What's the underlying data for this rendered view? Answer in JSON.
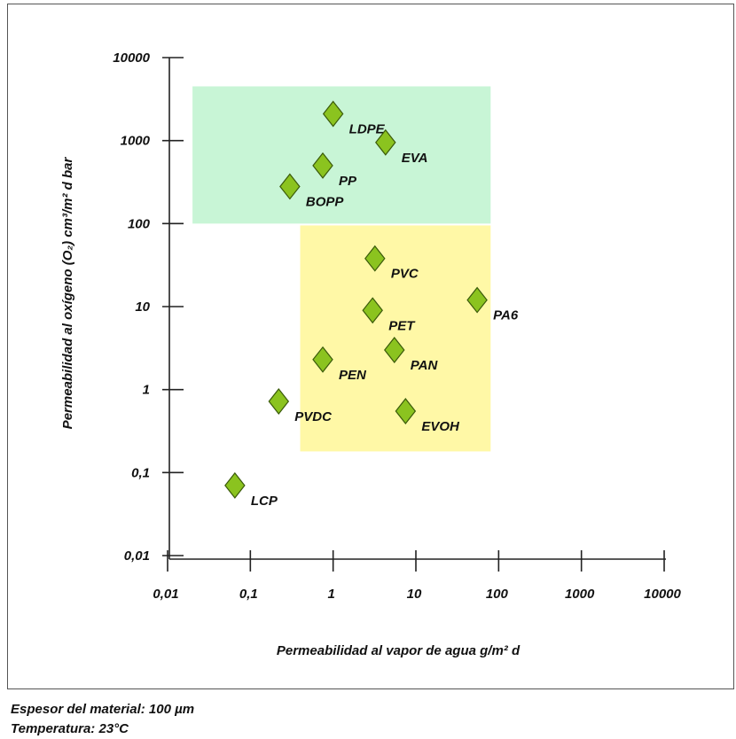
{
  "chart_data": {
    "type": "scatter",
    "x_scale": "log",
    "y_scale": "log",
    "xlim": [
      0.01,
      10000
    ],
    "ylim": [
      0.01,
      10000
    ],
    "xlabel": "Permeabilidad al vapor de agua g/m² d",
    "ylabel": "Permeabilidad al oxígeno (O₂) cm³/m² d bar",
    "x_ticks": [
      {
        "value": 0.01,
        "label": "0,01"
      },
      {
        "value": 0.1,
        "label": "0,1"
      },
      {
        "value": 1,
        "label": "1"
      },
      {
        "value": 10,
        "label": "10"
      },
      {
        "value": 100,
        "label": "100"
      },
      {
        "value": 1000,
        "label": "1000"
      },
      {
        "value": 10000,
        "label": "10000"
      }
    ],
    "y_ticks": [
      {
        "value": 10000,
        "label": "10000"
      },
      {
        "value": 1000,
        "label": "1000"
      },
      {
        "value": 100,
        "label": "100"
      },
      {
        "value": 10,
        "label": "10"
      },
      {
        "value": 1,
        "label": "1"
      },
      {
        "value": 0.1,
        "label": "0,1"
      },
      {
        "value": 0.01,
        "label": "0,01"
      }
    ],
    "points": [
      {
        "label": "LDPE",
        "x": 1.0,
        "y": 2100
      },
      {
        "label": "EVA",
        "x": 4.3,
        "y": 950
      },
      {
        "label": "PP",
        "x": 0.75,
        "y": 500
      },
      {
        "label": "BOPP",
        "x": 0.3,
        "y": 280
      },
      {
        "label": "PVC",
        "x": 3.2,
        "y": 38
      },
      {
        "label": "PA6",
        "x": 55,
        "y": 12
      },
      {
        "label": "PET",
        "x": 3.0,
        "y": 9
      },
      {
        "label": "PAN",
        "x": 5.5,
        "y": 3
      },
      {
        "label": "PEN",
        "x": 0.75,
        "y": 2.3
      },
      {
        "label": "PVDC",
        "x": 0.22,
        "y": 0.72
      },
      {
        "label": "EVOH",
        "x": 7.5,
        "y": 0.55
      },
      {
        "label": "LCP",
        "x": 0.065,
        "y": 0.07
      }
    ],
    "regions": [
      {
        "name": "green",
        "color": "#c8f5d6",
        "x_range": [
          0.02,
          80
        ],
        "y_range": [
          100,
          4500
        ]
      },
      {
        "name": "yellow",
        "color": "#fff8a6",
        "x_range": [
          0.4,
          80
        ],
        "y_range": [
          0.18,
          95
        ]
      }
    ],
    "marker_color": "#8bc31f",
    "marker_edge_color": "#3a5a0a",
    "grid": false
  },
  "notes": {
    "thickness": "Espesor del material: 100 µm",
    "temperature": "Temperatura: 23°C"
  }
}
